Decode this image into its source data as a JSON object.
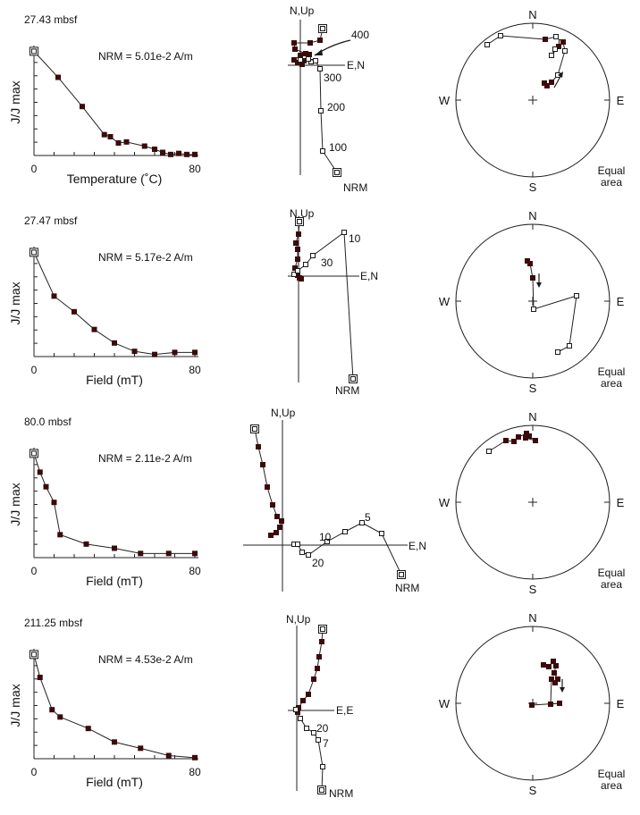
{
  "colors": {
    "ink": "#1a1a1a",
    "filled": "#3b0b0b",
    "open_fill": "#ffffff",
    "line": "#222222"
  },
  "panels": [
    {
      "depth_label": "27.43 mbsf",
      "demag": {
        "ylabel": "J/J max",
        "xlabel": "Temperature  (˚C)",
        "xticks": [
          "0",
          "80"
        ],
        "xlim": [
          0,
          80
        ],
        "nrm_label": "NRM = 5.01e-2 A/m",
        "x": [
          0,
          12,
          24,
          35,
          38,
          42,
          46,
          55,
          60,
          64,
          68,
          72,
          76,
          80
        ],
        "y": [
          1.0,
          0.75,
          0.47,
          0.2,
          0.18,
          0.12,
          0.13,
          0.09,
          0.06,
          0.03,
          0.01,
          0.02,
          0.01,
          0.01
        ]
      },
      "zijderveld": {
        "axis_up": "N,Up",
        "axis_right": "E,N",
        "step_labels": [
          "400",
          "300",
          "200",
          "100",
          "NRM"
        ]
      },
      "stereonet": {
        "n": "N",
        "s": "S",
        "e": "E",
        "w": "W",
        "net_label": "Equal area"
      }
    },
    {
      "depth_label": "27.47 mbsf",
      "demag": {
        "ylabel": "J/J max",
        "xlabel": "Field  (mT)",
        "xticks": [
          "0",
          "80"
        ],
        "xlim": [
          0,
          80
        ],
        "nrm_label": "NRM = 5.17e-2 A/m",
        "x": [
          0,
          10,
          20,
          30,
          40,
          50,
          60,
          70,
          80
        ],
        "y": [
          1.0,
          0.58,
          0.43,
          0.26,
          0.13,
          0.05,
          0.02,
          0.04,
          0.04
        ]
      },
      "zijderveld": {
        "axis_up": "N,Up",
        "axis_right": "E,N",
        "step_labels": [
          "10",
          "30",
          "NRM"
        ]
      },
      "stereonet": {
        "n": "N",
        "s": "S",
        "e": "E",
        "w": "W",
        "net_label": "Equal area"
      }
    },
    {
      "depth_label": "80.0 mbsf",
      "demag": {
        "ylabel": "J/J max",
        "xlabel": "Field  (mT)",
        "xticks": [
          "0",
          "80"
        ],
        "xlim": [
          0,
          80
        ],
        "nrm_label": "NRM = 2.11e-2 A/m",
        "x": [
          0,
          3,
          6,
          10,
          13,
          26,
          40,
          53,
          67,
          80
        ],
        "y": [
          1.0,
          0.82,
          0.68,
          0.53,
          0.22,
          0.13,
          0.09,
          0.04,
          0.04,
          0.04
        ]
      },
      "zijderveld": {
        "axis_up": "N,Up",
        "axis_right": "E,N",
        "step_labels": [
          "5",
          "10",
          "20",
          "NRM"
        ]
      },
      "stereonet": {
        "n": "N",
        "s": "S",
        "e": "E",
        "w": "W",
        "net_label": "Equal area"
      }
    },
    {
      "depth_label": "211.25 mbsf",
      "demag": {
        "ylabel": "J/J max",
        "xlabel": "Field  (mT)",
        "xticks": [
          "0",
          "80"
        ],
        "xlim": [
          0,
          80
        ],
        "nrm_label": "NRM = 4.53e-2 A/m",
        "x": [
          0,
          3,
          9,
          13,
          27,
          40,
          53,
          67,
          80
        ],
        "y": [
          1.0,
          0.78,
          0.47,
          0.4,
          0.29,
          0.16,
          0.1,
          0.03,
          0.01
        ]
      },
      "zijderveld": {
        "axis_up": "N,Up",
        "axis_right": "E,E",
        "step_labels": [
          "20",
          "7",
          "NRM"
        ]
      },
      "stereonet": {
        "n": "N",
        "s": "S",
        "e": "E",
        "w": "W",
        "net_label": "Equal area"
      }
    }
  ],
  "chart_data": [
    {
      "type": "line",
      "title": "27.43 mbsf",
      "xlabel": "Temperature  (˚C)",
      "ylabel": "J/J max",
      "xlim": [
        0,
        80
      ],
      "annotations": [
        "NRM = 5.01e-2 A/m"
      ],
      "x": [
        0,
        12,
        24,
        35,
        38,
        42,
        46,
        55,
        60,
        64,
        68,
        72,
        76,
        80
      ],
      "y": [
        1.0,
        0.75,
        0.47,
        0.2,
        0.18,
        0.12,
        0.13,
        0.09,
        0.06,
        0.03,
        0.01,
        0.02,
        0.01,
        0.01
      ]
    },
    {
      "type": "line",
      "title": "27.47 mbsf",
      "xlabel": "Field  (mT)",
      "ylabel": "J/J max",
      "xlim": [
        0,
        80
      ],
      "annotations": [
        "NRM = 5.17e-2 A/m"
      ],
      "x": [
        0,
        10,
        20,
        30,
        40,
        50,
        60,
        70,
        80
      ],
      "y": [
        1.0,
        0.58,
        0.43,
        0.26,
        0.13,
        0.05,
        0.02,
        0.04,
        0.04
      ]
    },
    {
      "type": "line",
      "title": "80.0 mbsf",
      "xlabel": "Field  (mT)",
      "ylabel": "J/J max",
      "xlim": [
        0,
        80
      ],
      "annotations": [
        "NRM = 2.11e-2 A/m"
      ],
      "x": [
        0,
        3,
        6,
        10,
        13,
        26,
        40,
        53,
        67,
        80
      ],
      "y": [
        1.0,
        0.82,
        0.68,
        0.53,
        0.22,
        0.13,
        0.09,
        0.04,
        0.04,
        0.04
      ]
    },
    {
      "type": "line",
      "title": "211.25 mbsf",
      "xlabel": "Field  (mT)",
      "ylabel": "J/J max",
      "xlim": [
        0,
        80
      ],
      "annotations": [
        "NRM = 4.53e-2 A/m"
      ],
      "x": [
        0,
        3,
        9,
        13,
        27,
        40,
        53,
        67,
        80
      ],
      "y": [
        1.0,
        0.78,
        0.47,
        0.4,
        0.29,
        0.16,
        0.1,
        0.03,
        0.01
      ]
    }
  ]
}
